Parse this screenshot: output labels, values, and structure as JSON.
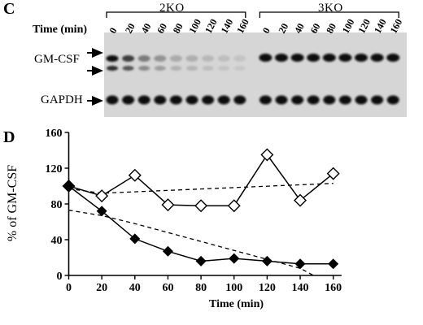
{
  "panel_c": {
    "letter": "C",
    "group_left": "2KO",
    "group_right": "3KO",
    "time_label": "Time (min)",
    "lane_times": [
      "0",
      "20",
      "40",
      "60",
      "80",
      "100",
      "120",
      "140",
      "160"
    ],
    "rows": [
      {
        "label": "GM-CSF",
        "bands": "double"
      },
      {
        "label": "GAPDH",
        "bands": "single"
      }
    ],
    "gm_intensity_2ko": [
      1.0,
      0.75,
      0.45,
      0.33,
      0.22,
      0.2,
      0.15,
      0.12,
      0.1
    ],
    "gm_intensity_3ko": [
      1.0,
      1.0,
      1.0,
      1.0,
      1.0,
      1.0,
      1.0,
      1.0,
      1.0
    ],
    "gapdh_intensity": [
      1.0,
      1.0,
      1.0,
      1.0,
      1.0,
      1.0,
      1.0,
      1.0,
      1.0
    ]
  },
  "panel_d": {
    "letter": "D"
  },
  "chart_data": {
    "type": "line",
    "title": "",
    "xlabel": "Time (min)",
    "ylabel": "% of GM-CSF",
    "x": [
      0,
      20,
      40,
      60,
      80,
      100,
      120,
      140,
      160
    ],
    "xticks": [
      0,
      20,
      40,
      60,
      80,
      100,
      120,
      140,
      160
    ],
    "yticks": [
      0,
      40,
      80,
      120,
      160
    ],
    "xlim": [
      0,
      170
    ],
    "ylim": [
      0,
      160
    ],
    "grid": false,
    "series": [
      {
        "values": [
          100,
          89,
          112,
          79,
          78,
          78,
          135,
          84,
          114
        ],
        "marker": "open-diamond",
        "color": "#000000"
      },
      {
        "values": [
          100,
          72,
          41,
          27,
          16,
          19,
          16,
          13,
          13
        ],
        "marker": "filled-diamond",
        "color": "#000000"
      }
    ],
    "fits": [
      {
        "style": "dashed",
        "points": [
          [
            0,
            97
          ],
          [
            20,
            92
          ],
          [
            160,
            103
          ]
        ]
      },
      {
        "style": "dashed",
        "points": [
          [
            0,
            73
          ],
          [
            20,
            67
          ],
          [
            40,
            58
          ],
          [
            60,
            48
          ],
          [
            80,
            38
          ],
          [
            100,
            28
          ],
          [
            120,
            18
          ],
          [
            140,
            8
          ],
          [
            148,
            0
          ]
        ]
      }
    ]
  }
}
